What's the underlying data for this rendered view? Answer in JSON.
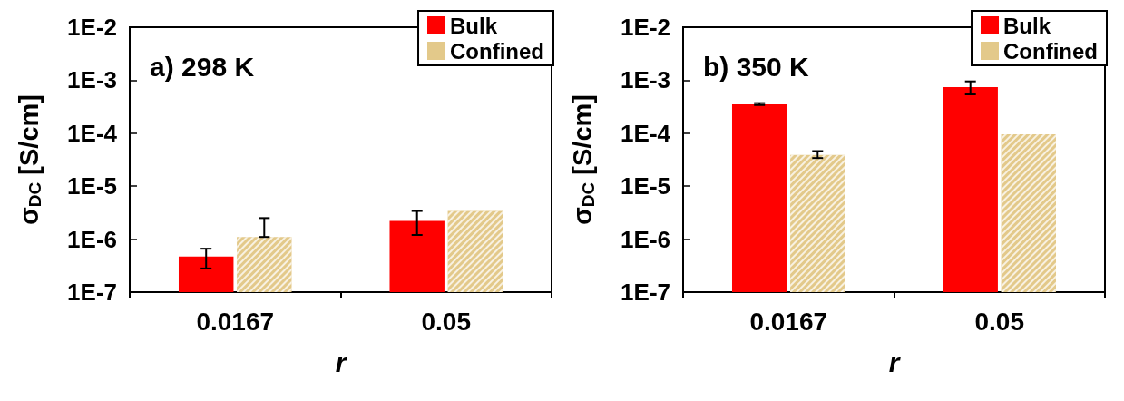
{
  "chart_data": [
    {
      "type": "bar",
      "annotations": [
        "a) 298 K"
      ],
      "xlabel": "r",
      "ylabel": "σ$_{DC}$ [S/cm]",
      "categories": [
        "0.0167",
        "0.05"
      ],
      "series": [
        {
          "name": "Bulk",
          "color": "#ff0000",
          "values": [
            4.7e-07,
            2.2e-06
          ],
          "errors": [
            [
              2.8e-07,
              6.6e-07
            ],
            [
              1.2e-06,
              3.4e-06
            ]
          ]
        },
        {
          "name": "Confined",
          "color": "#e3c98a",
          "values": [
            1.1e-06,
            3.4e-06
          ],
          "errors": [
            [
              1.1e-06,
              2.5e-06
            ],
            null
          ]
        }
      ],
      "log": true,
      "ylim": [
        1e-07,
        0.01
      ],
      "yticks": [
        {
          "value": 1e-07,
          "label": "1E-7"
        },
        {
          "value": 1e-06,
          "label": "1E-6"
        },
        {
          "value": 1e-05,
          "label": "1E-5"
        },
        {
          "value": 0.0001,
          "label": "1E-4"
        },
        {
          "value": 0.001,
          "label": "1E-3"
        },
        {
          "value": 0.01,
          "label": "1E-2"
        }
      ],
      "legend": "top right",
      "grid": false
    },
    {
      "type": "bar",
      "annotations": [
        "b) 350 K"
      ],
      "xlabel": "r",
      "ylabel": "σ$_{DC}$ [S/cm]",
      "categories": [
        "0.0167",
        "0.05"
      ],
      "series": [
        {
          "name": "Bulk",
          "color": "#ff0000",
          "values": [
            0.00035,
            0.00074
          ],
          "errors": [
            [
              0.00034,
              0.00037
            ],
            [
              0.00054,
              0.00095
            ]
          ]
        },
        {
          "name": "Confined",
          "color": "#e3c98a",
          "values": [
            3.9e-05,
            9.5e-05
          ],
          "errors": [
            [
              3.4e-05,
              4.6e-05
            ],
            null
          ]
        }
      ],
      "log": true,
      "ylim": [
        1e-07,
        0.01
      ],
      "yticks": [
        {
          "value": 1e-07,
          "label": "1E-7"
        },
        {
          "value": 1e-06,
          "label": "1E-6"
        },
        {
          "value": 1e-05,
          "label": "1E-5"
        },
        {
          "value": 0.0001,
          "label": "1E-4"
        },
        {
          "value": 0.001,
          "label": "1E-3"
        },
        {
          "value": 0.01,
          "label": "1E-2"
        }
      ],
      "legend": "top right",
      "grid": false
    }
  ]
}
